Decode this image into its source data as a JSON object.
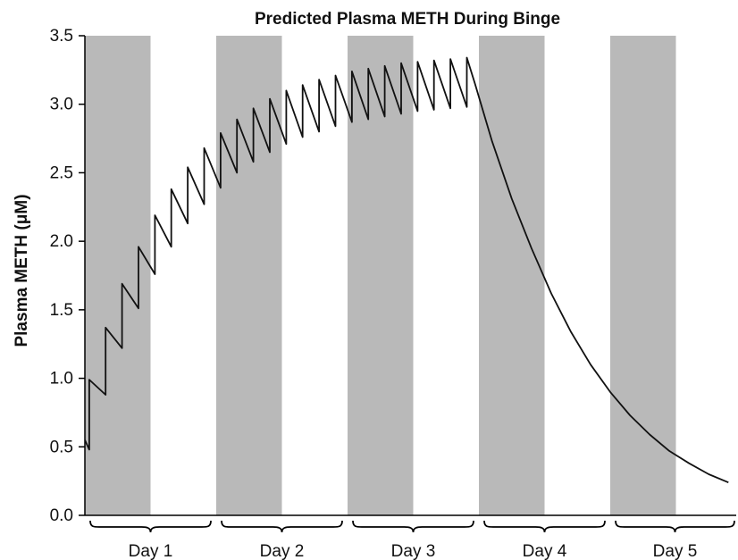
{
  "chart_data": {
    "type": "line",
    "title": "Predicted Plasma METH During Binge",
    "xlabel": "",
    "ylabel": "Plasma METH (μM)",
    "ylim": [
      0,
      3.5
    ],
    "yticks": [
      "0.0",
      "0.5",
      "1.0",
      "1.5",
      "2.0",
      "2.5",
      "3.0",
      "3.5"
    ],
    "xlim": [
      0,
      5
    ],
    "x_unit": "days",
    "grid": false,
    "shaded_bands": [
      {
        "start": 0.0,
        "end": 0.5
      },
      {
        "start": 1.0,
        "end": 1.5
      },
      {
        "start": 2.0,
        "end": 2.5
      },
      {
        "start": 3.0,
        "end": 3.5
      },
      {
        "start": 4.0,
        "end": 4.5
      }
    ],
    "day_labels": [
      "Day 1",
      "Day 2",
      "Day 3",
      "Day 4",
      "Day 5"
    ],
    "dosing": {
      "first_dose_day": 0.033,
      "interval_days": 0.125,
      "count": 24,
      "peaks": [
        0.99,
        1.37,
        1.69,
        1.96,
        2.19,
        2.38,
        2.54,
        2.68,
        2.79,
        2.89,
        2.97,
        3.04,
        3.1,
        3.14,
        3.18,
        3.21,
        3.24,
        3.26,
        3.28,
        3.3,
        3.31,
        3.32,
        3.33,
        3.34
      ],
      "troughs": [
        0.88,
        1.22,
        1.51,
        1.76,
        1.96,
        2.13,
        2.27,
        2.39,
        2.5,
        2.58,
        2.65,
        2.71,
        2.76,
        2.8,
        2.84,
        2.87,
        2.89,
        2.91,
        2.93,
        2.95,
        2.96,
        2.97,
        2.98
      ]
    },
    "series": [
      {
        "x": [
          0.0,
          0.033,
          0.033,
          0.158,
          0.158,
          0.283,
          0.283,
          0.408,
          0.408,
          0.533,
          0.533,
          0.658,
          0.658,
          0.783,
          0.783,
          0.908,
          0.908,
          1.033,
          1.033,
          1.158,
          1.158,
          1.283,
          1.283,
          1.408,
          1.408,
          1.533,
          1.533,
          1.658,
          1.658,
          1.783,
          1.783,
          1.908,
          1.908,
          2.033,
          2.033,
          2.158,
          2.158,
          2.283,
          2.283,
          2.408,
          2.408,
          2.533,
          2.533,
          2.658,
          2.658,
          2.783,
          2.783,
          2.908,
          2.908,
          2.97,
          3.1,
          3.25,
          3.4,
          3.55,
          3.7,
          3.85,
          4.0,
          4.15,
          4.3,
          4.45,
          4.6,
          4.75,
          4.9
        ],
        "values": [
          0.55,
          0.48,
          0.99,
          0.88,
          1.37,
          1.22,
          1.69,
          1.51,
          1.96,
          1.76,
          2.19,
          1.96,
          2.38,
          2.13,
          2.54,
          2.27,
          2.68,
          2.39,
          2.79,
          2.5,
          2.89,
          2.58,
          2.97,
          2.65,
          3.04,
          2.71,
          3.1,
          2.76,
          3.14,
          2.8,
          3.18,
          2.84,
          3.21,
          2.87,
          3.24,
          2.89,
          3.26,
          2.91,
          3.28,
          2.93,
          3.3,
          2.95,
          3.31,
          2.96,
          3.32,
          2.97,
          3.33,
          2.98,
          3.34,
          3.15,
          2.73,
          2.31,
          1.95,
          1.62,
          1.34,
          1.1,
          0.9,
          0.73,
          0.59,
          0.47,
          0.38,
          0.3,
          0.24
        ]
      }
    ]
  }
}
